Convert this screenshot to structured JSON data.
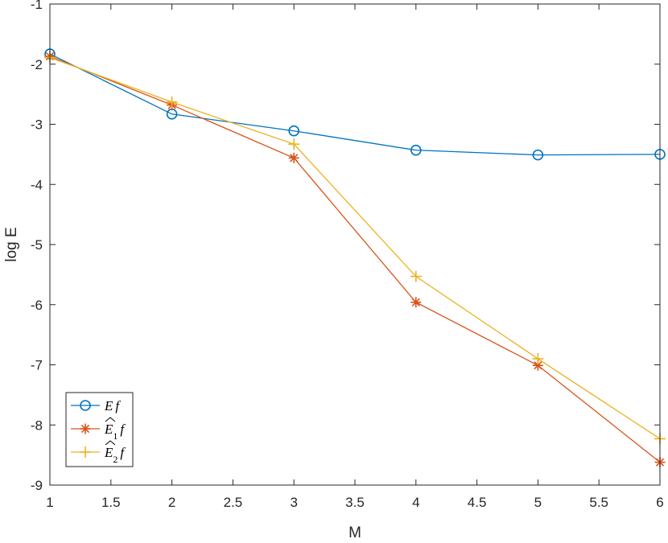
{
  "chart_data": {
    "type": "line",
    "xlabel": "M",
    "ylabel": "log E",
    "xlim": [
      1,
      6
    ],
    "ylim": [
      -9,
      -1
    ],
    "xticks": [
      "1",
      "1.5",
      "2",
      "2.5",
      "3",
      "3.5",
      "4",
      "4.5",
      "5",
      "5.5",
      "6"
    ],
    "yticks": [
      "-1",
      "-2",
      "-3",
      "-4",
      "-5",
      "-6",
      "-7",
      "-8",
      "-9"
    ],
    "grid": false,
    "legend_position": "bottom-left",
    "x": [
      1,
      2,
      3,
      4,
      5,
      6
    ],
    "series": [
      {
        "name": "Ef",
        "name_parts": {
          "base": "E",
          "sub": "",
          "hat": false,
          "tail": "f"
        },
        "color": "#0072BD",
        "marker": "circle",
        "values": [
          -1.83,
          -2.83,
          -3.11,
          -3.43,
          -3.51,
          -3.5
        ]
      },
      {
        "name": "Ê₁f",
        "name_parts": {
          "base": "E",
          "sub": "1",
          "hat": true,
          "tail": "f"
        },
        "color": "#D95319",
        "marker": "asterisk",
        "values": [
          -1.87,
          -2.68,
          -3.56,
          -5.96,
          -7.01,
          -8.62
        ]
      },
      {
        "name": "Ê₂f",
        "name_parts": {
          "base": "E",
          "sub": "2",
          "hat": true,
          "tail": "f"
        },
        "color": "#EDB120",
        "marker": "plus",
        "values": [
          -1.89,
          -2.63,
          -3.33,
          -5.53,
          -6.9,
          -8.23
        ]
      }
    ]
  }
}
